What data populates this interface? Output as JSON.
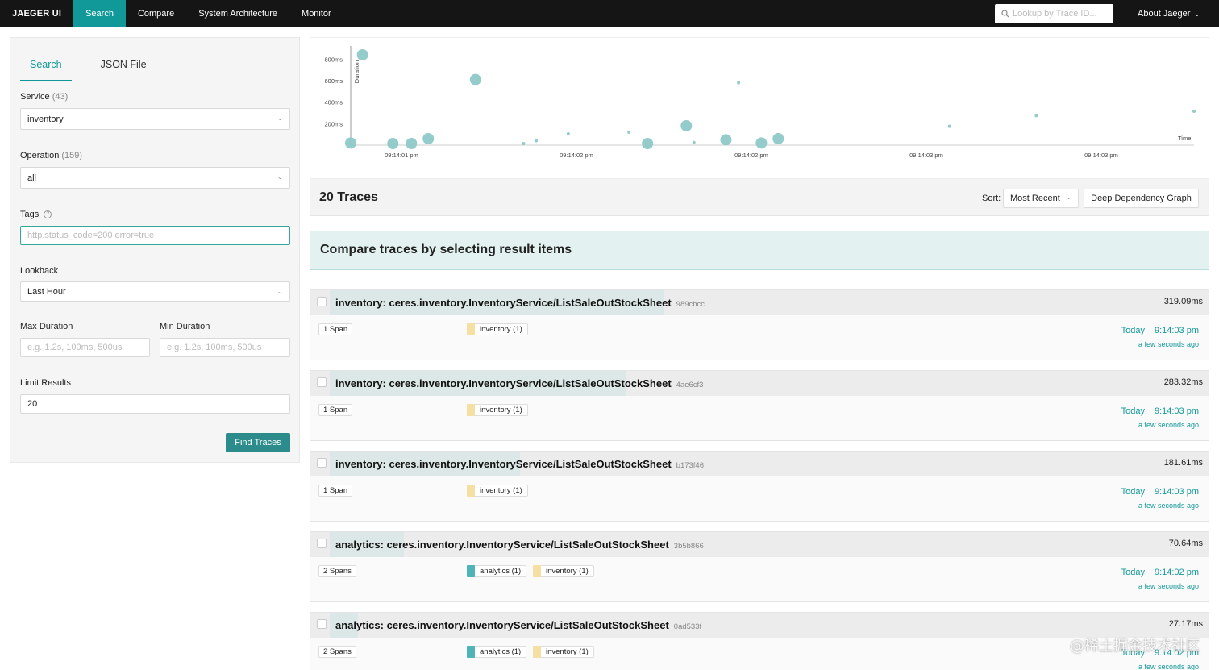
{
  "nav": {
    "brand": "JAEGER UI",
    "items": [
      {
        "label": "Search",
        "active": true
      },
      {
        "label": "Compare",
        "active": false
      },
      {
        "label": "System Architecture",
        "active": false
      },
      {
        "label": "Monitor",
        "active": false
      }
    ],
    "lookup_placeholder": "Lookup by Trace ID...",
    "about": "About Jaeger",
    "accent_color": "#119999"
  },
  "search": {
    "tabs": [
      "Search",
      "JSON File"
    ],
    "service_label": "Service",
    "service_count": "(43)",
    "service_value": "inventory",
    "operation_label": "Operation",
    "operation_count": "(159)",
    "operation_value": "all",
    "tags_label": "Tags",
    "tags_placeholder": "http.status_code=200 error=true",
    "lookback_label": "Lookback",
    "lookback_value": "Last Hour",
    "max_duration_label": "Max Duration",
    "max_duration_placeholder": "e.g. 1.2s, 100ms, 500us",
    "min_duration_label": "Min Duration",
    "min_duration_placeholder": "e.g. 1.2s, 100ms, 500us",
    "limit_label": "Limit Results",
    "limit_value": "20",
    "find_button": "Find Traces"
  },
  "chart_data": {
    "type": "scatter",
    "ylabel": "Duration",
    "xlabel": "Time",
    "yticks": [
      "800ms",
      "600ms",
      "400ms",
      "200ms"
    ],
    "ytick_values": [
      800,
      600,
      400,
      200
    ],
    "xticks": [
      "09:14:01 pm",
      "09:14:02 pm",
      "09:14:02 pm",
      "09:14:03 pm",
      "09:14:03 pm"
    ],
    "ylim": [
      0,
      900
    ],
    "points": [
      {
        "t": 0.0,
        "y": 20,
        "r": 7
      },
      {
        "t": 0.014,
        "y": 840,
        "r": 7
      },
      {
        "t": 0.05,
        "y": 15,
        "r": 7
      },
      {
        "t": 0.072,
        "y": 15,
        "r": 7
      },
      {
        "t": 0.092,
        "y": 60,
        "r": 7
      },
      {
        "t": 0.148,
        "y": 610,
        "r": 7
      },
      {
        "t": 0.205,
        "y": 5,
        "r": 2
      },
      {
        "t": 0.22,
        "y": 40,
        "r": 2
      },
      {
        "t": 0.258,
        "y": 105,
        "r": 2
      },
      {
        "t": 0.33,
        "y": 120,
        "r": 2
      },
      {
        "t": 0.352,
        "y": 15,
        "r": 7
      },
      {
        "t": 0.398,
        "y": 180,
        "r": 7
      },
      {
        "t": 0.407,
        "y": 25,
        "r": 2
      },
      {
        "t": 0.445,
        "y": 50,
        "r": 7
      },
      {
        "t": 0.46,
        "y": 580,
        "r": 2
      },
      {
        "t": 0.487,
        "y": 20,
        "r": 7
      },
      {
        "t": 0.507,
        "y": 60,
        "r": 7
      },
      {
        "t": 0.71,
        "y": 175,
        "r": 2
      },
      {
        "t": 0.813,
        "y": 275,
        "r": 2
      },
      {
        "t": 1.0,
        "y": 315,
        "r": 2
      }
    ],
    "point_color": "#8ec8c8"
  },
  "results": {
    "count_label": "20 Traces",
    "sort_label": "Sort:",
    "sort_value": "Most Recent",
    "ddg_button": "Deep Dependency Graph",
    "compare_banner": "Compare traces by selecting result items"
  },
  "traces": [
    {
      "service": "inventory",
      "operation": "ceres.inventory.InventoryService/ListSaleOutStockSheet",
      "trace_id": "989cbcc",
      "duration": "319.09ms",
      "duration_ms": 319.09,
      "spans": "1 Span",
      "tags": [
        {
          "label": "inventory (1)",
          "color": "#f5dfa3"
        }
      ],
      "date": "Today",
      "time": "9:14:03 pm",
      "ago": "a few seconds ago"
    },
    {
      "service": "inventory",
      "operation": "ceres.inventory.InventoryService/ListSaleOutStockSheet",
      "trace_id": "4ae6cf3",
      "duration": "283.32ms",
      "duration_ms": 283.32,
      "spans": "1 Span",
      "tags": [
        {
          "label": "inventory (1)",
          "color": "#f5dfa3"
        }
      ],
      "date": "Today",
      "time": "9:14:03 pm",
      "ago": "a few seconds ago"
    },
    {
      "service": "inventory",
      "operation": "ceres.inventory.InventoryService/ListSaleOutStockSheet",
      "trace_id": "b173f46",
      "duration": "181.61ms",
      "duration_ms": 181.61,
      "spans": "1 Span",
      "tags": [
        {
          "label": "inventory (1)",
          "color": "#f5dfa3"
        }
      ],
      "date": "Today",
      "time": "9:14:03 pm",
      "ago": "a few seconds ago"
    },
    {
      "service": "analytics",
      "operation": "ceres.inventory.InventoryService/ListSaleOutStockSheet",
      "trace_id": "3b5b866",
      "duration": "70.64ms",
      "duration_ms": 70.64,
      "spans": "2 Spans",
      "tags": [
        {
          "label": "analytics (1)",
          "color": "#4fb3b8"
        },
        {
          "label": "inventory (1)",
          "color": "#f5dfa3"
        }
      ],
      "date": "Today",
      "time": "9:14:02 pm",
      "ago": "a few seconds ago"
    },
    {
      "service": "analytics",
      "operation": "ceres.inventory.InventoryService/ListSaleOutStockSheet",
      "trace_id": "0ad533f",
      "duration": "27.17ms",
      "duration_ms": 27.17,
      "spans": "2 Spans",
      "tags": [
        {
          "label": "analytics (1)",
          "color": "#4fb3b8"
        },
        {
          "label": "inventory (1)",
          "color": "#f5dfa3"
        }
      ],
      "date": "Today",
      "time": "9:14:02 pm",
      "ago": "a few seconds ago"
    }
  ],
  "watermark": "@稀土掘金技术社区"
}
